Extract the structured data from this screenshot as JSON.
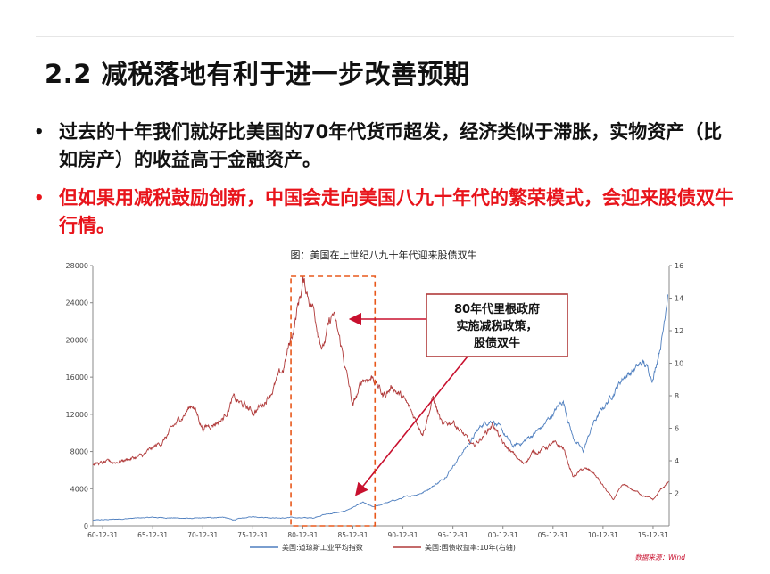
{
  "slide": {
    "title": "2.2  减税落地有利于进一步改善预期",
    "bullets": [
      {
        "text": "过去的十年我们就好比美国的70年代货币超发，经济类似于滞胀，实物资产（比如房产）的收益高于金融资产。",
        "color": "#111111"
      },
      {
        "text": "但如果用减税鼓励创新，中国会走向美国八九十年代的繁荣模式，会迎来股债双牛行情。",
        "color": "#e8141b"
      }
    ]
  },
  "chart_data": {
    "type": "line",
    "title": "图：美国在上世纪八九十年代迎来股债双牛",
    "source": "数据来源：Wind",
    "x_start_year": 1960,
    "x_end_year": 2017.6,
    "x_ticks": [
      "60-12-31",
      "65-12-31",
      "70-12-31",
      "75-12-31",
      "80-12-31",
      "85-12-31",
      "90-12-31",
      "95-12-31",
      "00-12-31",
      "05-12-31",
      "10-12-31",
      "15-12-31"
    ],
    "y_left": {
      "min": 0,
      "max": 28000,
      "ticks": [
        0,
        4000,
        8000,
        12000,
        16000,
        20000,
        24000,
        28000
      ]
    },
    "y_right": {
      "min": 0,
      "max": 16,
      "ticks": [
        2,
        4,
        6,
        8,
        10,
        12,
        14,
        16
      ]
    },
    "series": [
      {
        "name": "美国:道琼斯工业平均指数",
        "axis": "left",
        "color": "#4f7fbf",
        "points": [
          [
            1960,
            600
          ],
          [
            1965,
            870
          ],
          [
            1966,
            920
          ],
          [
            1970,
            800
          ],
          [
            1973,
            950
          ],
          [
            1974,
            650
          ],
          [
            1976,
            1000
          ],
          [
            1979,
            830
          ],
          [
            1980,
            900
          ],
          [
            1982,
            850
          ],
          [
            1983,
            1200
          ],
          [
            1985,
            1500
          ],
          [
            1987,
            2500
          ],
          [
            1988,
            2000
          ],
          [
            1990,
            2700
          ],
          [
            1993,
            3600
          ],
          [
            1995,
            5000
          ],
          [
            1997,
            8000
          ],
          [
            1999,
            11000
          ],
          [
            2000,
            11500
          ],
          [
            2002,
            8500
          ],
          [
            2003,
            9000
          ],
          [
            2005,
            10700
          ],
          [
            2007,
            13500
          ],
          [
            2008,
            9500
          ],
          [
            2009,
            8000
          ],
          [
            2010,
            11000
          ],
          [
            2013,
            16000
          ],
          [
            2015,
            17500
          ],
          [
            2016,
            16000
          ],
          [
            2017,
            21000
          ],
          [
            2017.5,
            26000
          ]
        ]
      },
      {
        "name": "美国:国债收益率:10年(右轴)",
        "axis": "right",
        "color": "#b03a3a",
        "points": [
          [
            1960,
            3.8
          ],
          [
            1962,
            3.9
          ],
          [
            1965,
            4.3
          ],
          [
            1967,
            5.2
          ],
          [
            1969,
            6.8
          ],
          [
            1970,
            7.5
          ],
          [
            1971,
            6.0
          ],
          [
            1973,
            6.6
          ],
          [
            1974,
            7.8
          ],
          [
            1976,
            7.0
          ],
          [
            1977,
            7.5
          ],
          [
            1979,
            9.5
          ],
          [
            1980,
            12.0
          ],
          [
            1981,
            15.0
          ],
          [
            1982,
            13.5
          ],
          [
            1983,
            11.0
          ],
          [
            1984,
            13.0
          ],
          [
            1985,
            10.5
          ],
          [
            1986,
            7.3
          ],
          [
            1987,
            9.0
          ],
          [
            1988,
            9.2
          ],
          [
            1989,
            8.0
          ],
          [
            1990,
            8.6
          ],
          [
            1991,
            7.8
          ],
          [
            1993,
            5.8
          ],
          [
            1994,
            7.9
          ],
          [
            1995,
            6.0
          ],
          [
            1996,
            6.5
          ],
          [
            1998,
            4.8
          ],
          [
            2000,
            6.3
          ],
          [
            2001,
            5.0
          ],
          [
            2003,
            3.8
          ],
          [
            2004,
            4.5
          ],
          [
            2006,
            5.0
          ],
          [
            2007,
            4.8
          ],
          [
            2008,
            3.0
          ],
          [
            2009,
            3.5
          ],
          [
            2010,
            3.3
          ],
          [
            2012,
            1.6
          ],
          [
            2013,
            2.5
          ],
          [
            2014,
            2.2
          ],
          [
            2016,
            1.6
          ],
          [
            2017,
            2.4
          ],
          [
            2017.6,
            2.7
          ]
        ]
      }
    ],
    "annotation": {
      "text_lines": [
        "80年代里根政府",
        "实施减税政策，",
        "股债双牛"
      ],
      "highlight_start_year": 1979.8,
      "highlight_end_year": 1988.2
    }
  }
}
